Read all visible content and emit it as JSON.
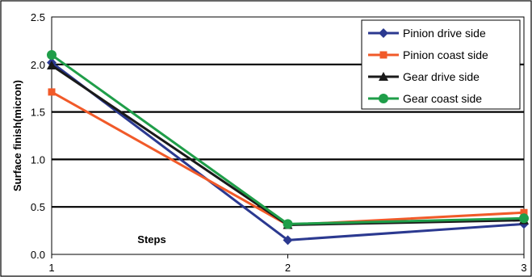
{
  "chart_data": {
    "type": "line",
    "x": [
      1,
      2,
      3
    ],
    "xlabel": "Steps",
    "ylabel": "Surface finish(micron)",
    "ylim": [
      0.0,
      2.5
    ],
    "yticks": [
      "0.0",
      "0.5",
      "1.0",
      "1.5",
      "2.0",
      "2.5"
    ],
    "xticks": [
      "1",
      "2",
      "3"
    ],
    "grid": true,
    "legend_position": "top-right",
    "series": [
      {
        "name": "Pinion drive side",
        "values": [
          2.02,
          0.15,
          0.32
        ],
        "color": "#2b3990",
        "marker": "diamond"
      },
      {
        "name": "Pinion coast side",
        "values": [
          1.71,
          0.31,
          0.44
        ],
        "color": "#f15a29",
        "marker": "square"
      },
      {
        "name": "Gear drive side",
        "values": [
          1.99,
          0.31,
          0.36
        ],
        "color": "#1a1a1a",
        "marker": "triangle"
      },
      {
        "name": "Gear coast side",
        "values": [
          2.1,
          0.32,
          0.38
        ],
        "color": "#1f9e49",
        "marker": "circle"
      }
    ]
  }
}
